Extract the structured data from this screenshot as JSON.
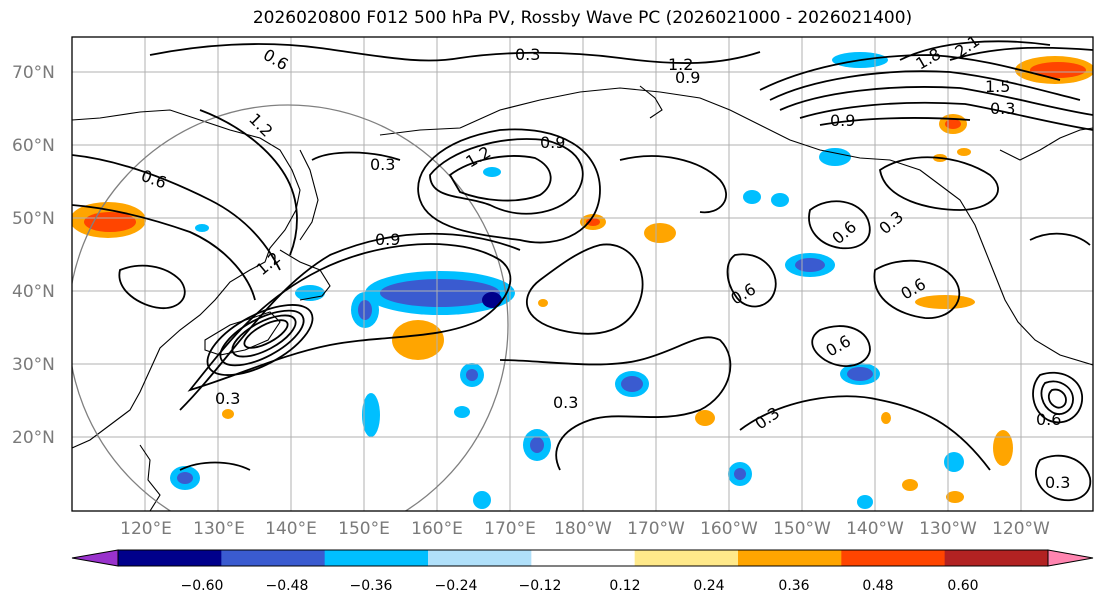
{
  "title": "2026020800 F012 500 hPa PV, Rossby Wave PC (2026021000 - 2026021400)",
  "lat_labels": [
    "70°N",
    "60°N",
    "50°N",
    "40°N",
    "30°N",
    "20°N"
  ],
  "lon_labels": [
    "120°E",
    "130°E",
    "140°E",
    "150°E",
    "160°E",
    "170°E",
    "180°W",
    "170°W",
    "160°W",
    "150°W",
    "140°W",
    "130°W",
    "120°W"
  ],
  "contour_labels": [
    "0.3",
    "0.3",
    "0.3",
    "0.3",
    "0.3",
    "0.3",
    "0.3",
    "0.3",
    "0.6",
    "0.6",
    "0.6",
    "0.6",
    "0.6",
    "0.6",
    "0.6",
    "0.9",
    "0.9",
    "0.9",
    "0.9",
    "1.2",
    "1.2",
    "1.2",
    "1.2",
    "1.5",
    "1.8",
    "2.1"
  ],
  "colorbar": {
    "ticks": [
      "−0.60",
      "−0.48",
      "−0.36",
      "−0.24",
      "−0.12",
      "0.12",
      "0.24",
      "0.36",
      "0.48",
      "0.60"
    ],
    "colors": [
      "#9932cc",
      "#00008b",
      "#3a5bd0",
      "#00bfff",
      "#b0e0fa",
      "#ffffff",
      "#ffe98a",
      "#ffa500",
      "#ff4500",
      "#b22222",
      "#ff85b0"
    ]
  }
}
